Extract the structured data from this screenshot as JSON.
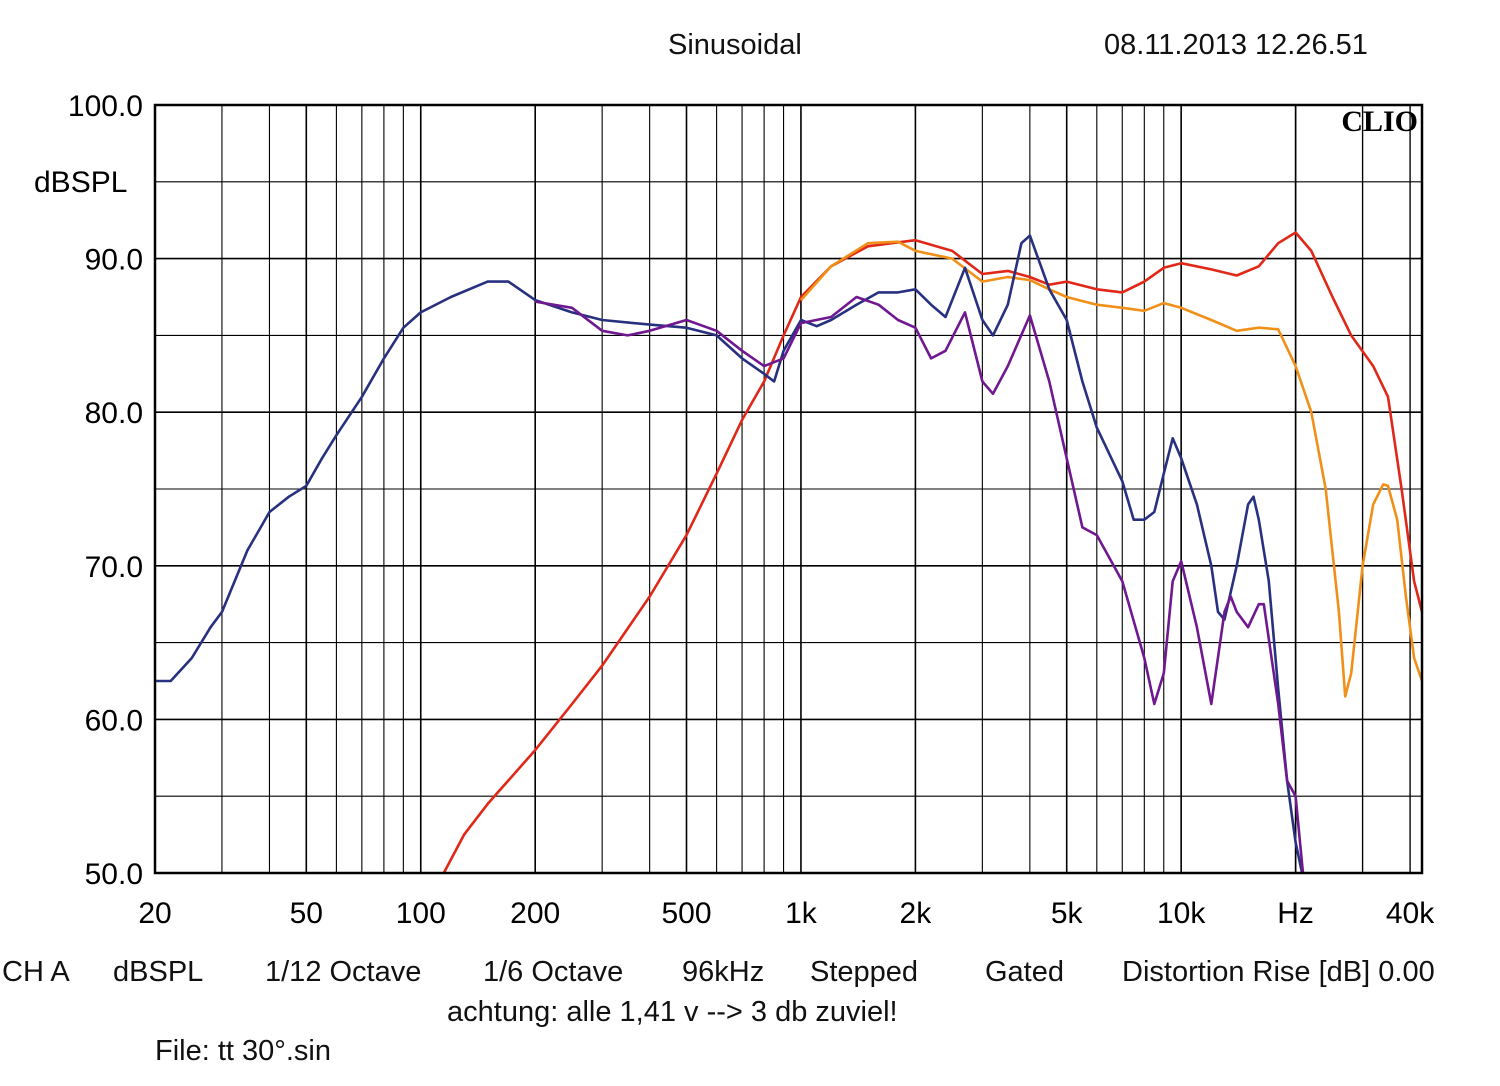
{
  "header": {
    "mode": "Sinusoidal",
    "timestamp": "08.11.2013 12.26.51"
  },
  "footer": {
    "settings": [
      "CH A",
      "dBSPL",
      "1/12 Octave",
      "1/6 Octave",
      "96kHz",
      "Stepped",
      "Gated",
      "Distortion Rise [dB] 0.00"
    ],
    "note": "achtung: alle 1,41 v --> 3 db zuviel!",
    "file": "File: tt 30°.sin"
  },
  "chart_data": {
    "type": "line",
    "title": "",
    "xlabel": "Hz",
    "ylabel": "dBSPL",
    "x_scale": "log",
    "xlim": [
      20,
      43000
    ],
    "ylim": [
      50,
      100
    ],
    "grid": true,
    "logo": "CLIO",
    "y_ticks": [
      "100.0",
      "90.0",
      "80.0",
      "70.0",
      "60.0",
      "50.0"
    ],
    "x_ticks": [
      {
        "value": 20,
        "label": "20"
      },
      {
        "value": 50,
        "label": "50"
      },
      {
        "value": 100,
        "label": "100"
      },
      {
        "value": 200,
        "label": "200"
      },
      {
        "value": 500,
        "label": "500"
      },
      {
        "value": 1000,
        "label": "1k"
      },
      {
        "value": 2000,
        "label": "2k"
      },
      {
        "value": 5000,
        "label": "5k"
      },
      {
        "value": 10000,
        "label": "10k"
      },
      {
        "value": 20000,
        "label": "Hz"
      },
      {
        "value": 40000,
        "label": "40k"
      }
    ],
    "series": [
      {
        "color": "#e02818",
        "points": [
          [
            115,
            50
          ],
          [
            130,
            52.5
          ],
          [
            150,
            54.5
          ],
          [
            200,
            58
          ],
          [
            250,
            61
          ],
          [
            300,
            63.5
          ],
          [
            400,
            68
          ],
          [
            500,
            72
          ],
          [
            600,
            76
          ],
          [
            700,
            79.5
          ],
          [
            800,
            82
          ],
          [
            900,
            85
          ],
          [
            1000,
            87.5
          ],
          [
            1200,
            89.5
          ],
          [
            1500,
            90.8
          ],
          [
            2000,
            91.2
          ],
          [
            2500,
            90.5
          ],
          [
            3000,
            89
          ],
          [
            3500,
            89.2
          ],
          [
            4000,
            88.8
          ],
          [
            4500,
            88.3
          ],
          [
            5000,
            88.5
          ],
          [
            6000,
            88
          ],
          [
            7000,
            87.8
          ],
          [
            8000,
            88.5
          ],
          [
            9000,
            89.4
          ],
          [
            10000,
            89.7
          ],
          [
            12000,
            89.3
          ],
          [
            14000,
            88.9
          ],
          [
            16000,
            89.5
          ],
          [
            18000,
            91
          ],
          [
            20000,
            91.7
          ],
          [
            22000,
            90.5
          ],
          [
            25000,
            87.5
          ],
          [
            28000,
            85
          ],
          [
            32000,
            83
          ],
          [
            35000,
            81
          ],
          [
            38000,
            75
          ],
          [
            41000,
            69
          ],
          [
            43000,
            67
          ]
        ]
      },
      {
        "color": "#f09018",
        "points": [
          [
            1000,
            87.3
          ],
          [
            1200,
            89.5
          ],
          [
            1500,
            91
          ],
          [
            1800,
            91.1
          ],
          [
            2000,
            90.5
          ],
          [
            2500,
            90
          ],
          [
            3000,
            88.5
          ],
          [
            3500,
            88.8
          ],
          [
            4000,
            88.6
          ],
          [
            4500,
            88
          ],
          [
            5000,
            87.5
          ],
          [
            6000,
            87
          ],
          [
            7000,
            86.8
          ],
          [
            8000,
            86.6
          ],
          [
            9000,
            87.1
          ],
          [
            10000,
            86.8
          ],
          [
            12000,
            86
          ],
          [
            14000,
            85.3
          ],
          [
            16000,
            85.5
          ],
          [
            18000,
            85.4
          ],
          [
            20000,
            83
          ],
          [
            22000,
            80
          ],
          [
            24000,
            75
          ],
          [
            26000,
            67
          ],
          [
            27000,
            61.5
          ],
          [
            28000,
            63
          ],
          [
            30000,
            70
          ],
          [
            32000,
            74
          ],
          [
            34000,
            75.3
          ],
          [
            35000,
            75.2
          ],
          [
            37000,
            73
          ],
          [
            39000,
            68
          ],
          [
            41000,
            64
          ],
          [
            43000,
            62.5
          ]
        ]
      },
      {
        "color": "#283080",
        "points": [
          [
            20,
            62.5
          ],
          [
            22,
            62.5
          ],
          [
            25,
            64
          ],
          [
            28,
            66
          ],
          [
            30,
            67
          ],
          [
            35,
            71
          ],
          [
            40,
            73.5
          ],
          [
            45,
            74.5
          ],
          [
            50,
            75.2
          ],
          [
            55,
            77
          ],
          [
            60,
            78.5
          ],
          [
            70,
            81
          ],
          [
            80,
            83.5
          ],
          [
            90,
            85.5
          ],
          [
            100,
            86.5
          ],
          [
            120,
            87.5
          ],
          [
            150,
            88.5
          ],
          [
            170,
            88.5
          ],
          [
            200,
            87.3
          ],
          [
            250,
            86.5
          ],
          [
            300,
            86
          ],
          [
            400,
            85.7
          ],
          [
            500,
            85.5
          ],
          [
            600,
            85
          ],
          [
            700,
            83.5
          ],
          [
            800,
            82.5
          ],
          [
            850,
            82
          ],
          [
            900,
            84
          ],
          [
            1000,
            86
          ],
          [
            1100,
            85.6
          ],
          [
            1200,
            86
          ],
          [
            1400,
            87
          ],
          [
            1600,
            87.8
          ],
          [
            1800,
            87.8
          ],
          [
            2000,
            88
          ],
          [
            2200,
            87
          ],
          [
            2400,
            86.2
          ],
          [
            2700,
            89.4
          ],
          [
            3000,
            86
          ],
          [
            3200,
            85
          ],
          [
            3500,
            87
          ],
          [
            3800,
            91
          ],
          [
            4000,
            91.5
          ],
          [
            4500,
            88
          ],
          [
            5000,
            86
          ],
          [
            5500,
            82
          ],
          [
            6000,
            79
          ],
          [
            7000,
            75.5
          ],
          [
            7500,
            73
          ],
          [
            8000,
            73
          ],
          [
            8500,
            73.5
          ],
          [
            9000,
            76
          ],
          [
            9500,
            78.3
          ],
          [
            10000,
            77
          ],
          [
            11000,
            74
          ],
          [
            12000,
            70
          ],
          [
            12500,
            67
          ],
          [
            13000,
            66.5
          ],
          [
            14000,
            70
          ],
          [
            15000,
            74
          ],
          [
            15500,
            74.5
          ],
          [
            16000,
            73
          ],
          [
            17000,
            69
          ],
          [
            18000,
            62
          ],
          [
            19000,
            56
          ],
          [
            20000,
            52
          ],
          [
            21000,
            49.5
          ]
        ]
      },
      {
        "color": "#701890",
        "points": [
          [
            200,
            87.2
          ],
          [
            250,
            86.8
          ],
          [
            300,
            85.3
          ],
          [
            350,
            85
          ],
          [
            400,
            85.3
          ],
          [
            500,
            86
          ],
          [
            600,
            85.3
          ],
          [
            700,
            84
          ],
          [
            800,
            83
          ],
          [
            900,
            83.5
          ],
          [
            1000,
            85.8
          ],
          [
            1200,
            86.2
          ],
          [
            1400,
            87.5
          ],
          [
            1600,
            87
          ],
          [
            1800,
            86
          ],
          [
            2000,
            85.5
          ],
          [
            2200,
            83.5
          ],
          [
            2400,
            84
          ],
          [
            2700,
            86.5
          ],
          [
            3000,
            82
          ],
          [
            3200,
            81.2
          ],
          [
            3500,
            83
          ],
          [
            4000,
            86.3
          ],
          [
            4500,
            82
          ],
          [
            5000,
            77
          ],
          [
            5500,
            72.5
          ],
          [
            6000,
            72
          ],
          [
            7000,
            69
          ],
          [
            8000,
            64
          ],
          [
            8500,
            61
          ],
          [
            9000,
            63
          ],
          [
            9500,
            69
          ],
          [
            10000,
            70.3
          ],
          [
            11000,
            66
          ],
          [
            12000,
            61
          ],
          [
            13000,
            67
          ],
          [
            13500,
            68
          ],
          [
            14000,
            67
          ],
          [
            15000,
            66
          ],
          [
            16000,
            67.5
          ],
          [
            16500,
            67.5
          ],
          [
            18000,
            61
          ],
          [
            19000,
            56
          ],
          [
            20000,
            55
          ],
          [
            21000,
            49.5
          ]
        ]
      }
    ]
  }
}
